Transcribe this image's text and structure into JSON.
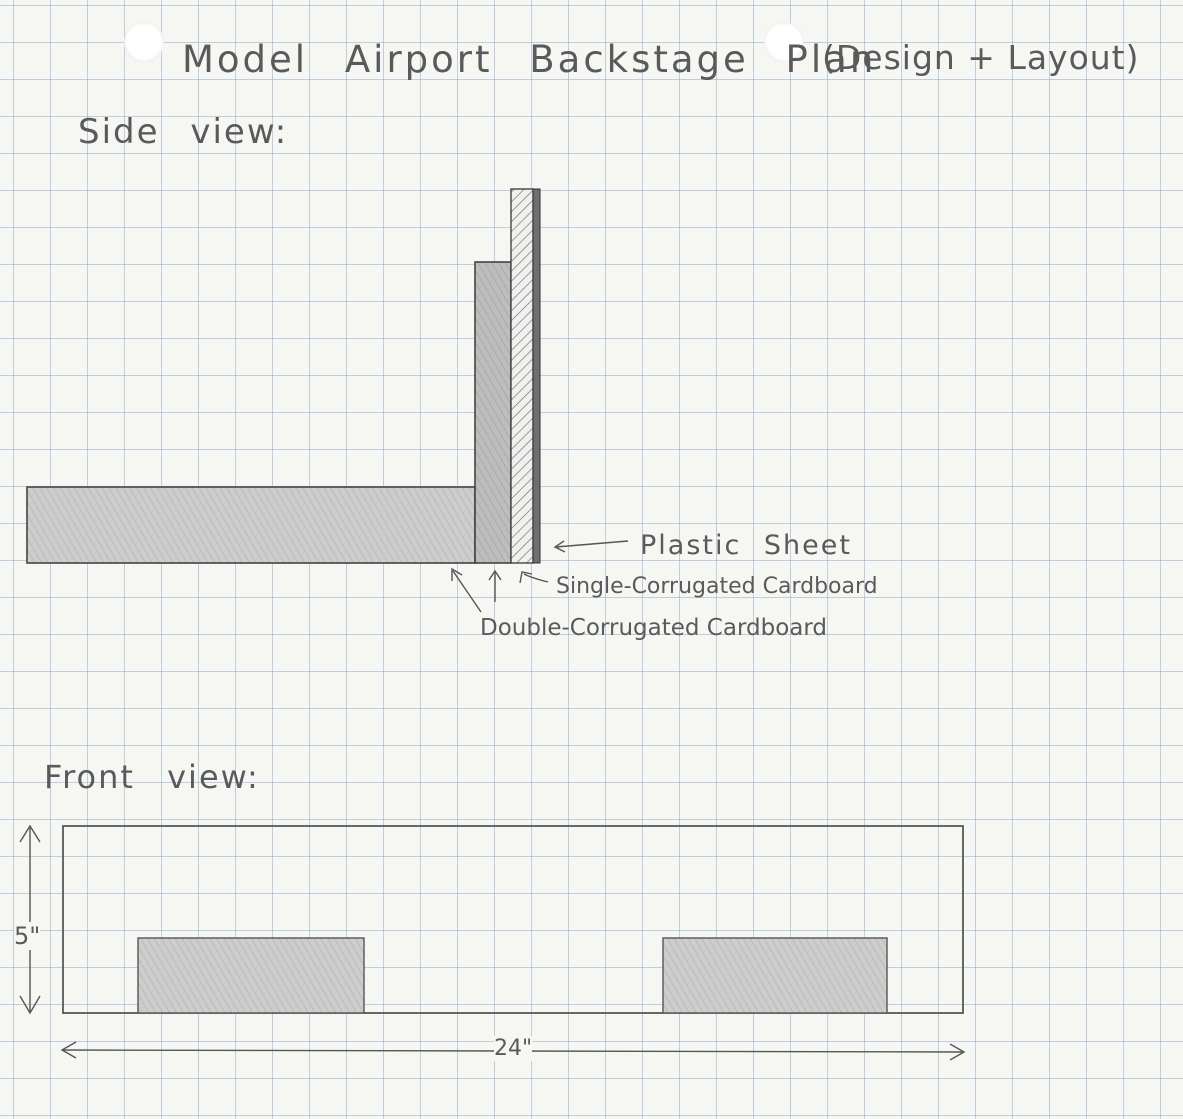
{
  "title": {
    "main": "Model Airport Backstage Plan",
    "sub": "(Design + Layout)"
  },
  "side_view": {
    "heading": "Side view:",
    "labels": {
      "plastic": "Plastic Sheet",
      "single": "Single-Corrugated Cardboard",
      "double": "Double-Corrugated Cardboard"
    }
  },
  "front_view": {
    "heading": "Front view:",
    "height_dim": "5\"",
    "width_dim": "24\""
  },
  "icons": {
    "hole_left": "binder-hole-icon",
    "hole_right": "binder-hole-icon"
  }
}
